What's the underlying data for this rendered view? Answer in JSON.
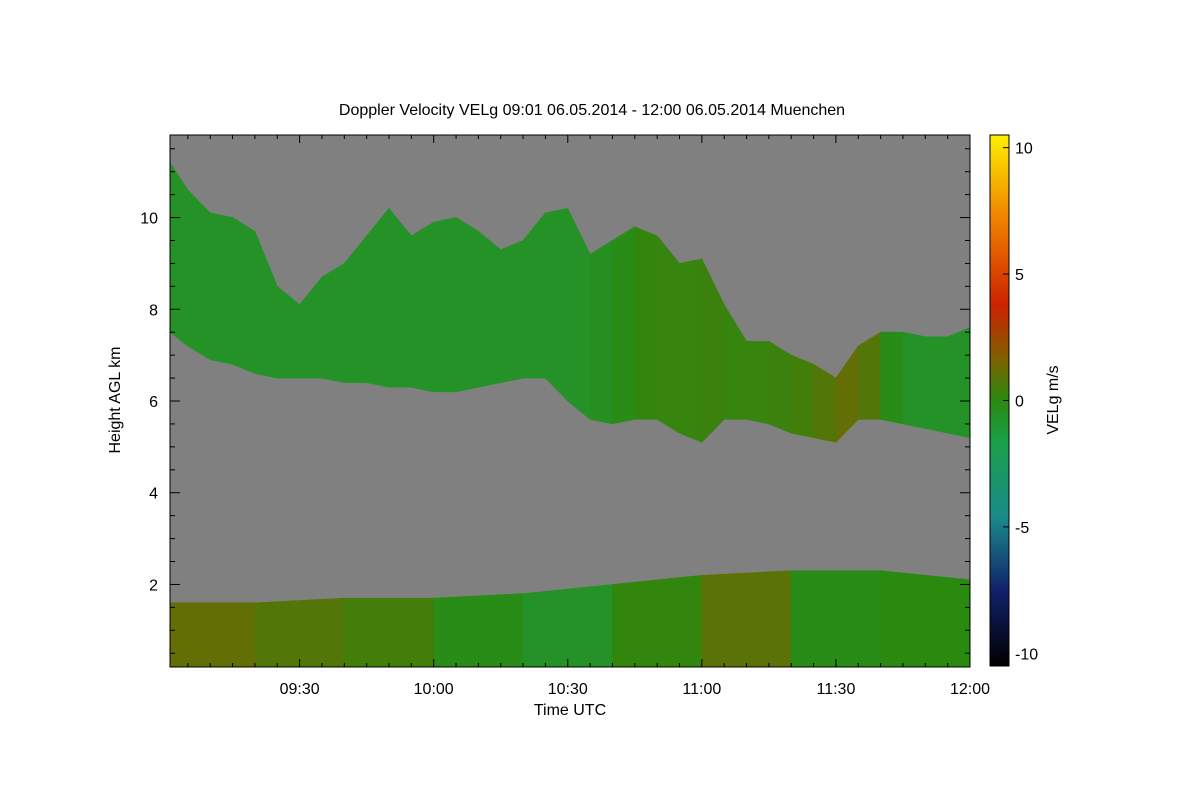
{
  "chart_data": {
    "type": "heatmap",
    "title": "Doppler Velocity VELg   09:01 06.05.2014 - 12:00 06.05.2014 Muenchen",
    "xlabel": "Time UTC",
    "ylabel": "Height AGL km",
    "x_ticks": [
      "09:30",
      "10:00",
      "10:30",
      "11:00",
      "11:30",
      "12:00"
    ],
    "x_tick_minutes": [
      570,
      600,
      630,
      660,
      690,
      720
    ],
    "xlim_minutes": [
      541,
      720
    ],
    "y_ticks": [
      "2",
      "4",
      "6",
      "8",
      "10"
    ],
    "y_tick_values": [
      2,
      4,
      6,
      8,
      10
    ],
    "ylim": [
      0.2,
      11.8
    ],
    "grid": false,
    "colorbar": {
      "label": "VELg m/s",
      "ticks": [
        "10",
        "5",
        "0",
        "-5",
        "-10"
      ],
      "tick_values": [
        10,
        5,
        0,
        -5,
        -10
      ],
      "range": [
        -10.5,
        10.5
      ],
      "colors": [
        "#000000",
        "#10206a",
        "#1a8a8a",
        "#1aa04a",
        "#2a8a10",
        "#806000",
        "#cc2200",
        "#f08000",
        "#ffee00"
      ]
    },
    "background_color": "#808080",
    "cloud_layer": {
      "time_minutes": [
        541,
        545,
        550,
        555,
        560,
        565,
        570,
        575,
        580,
        585,
        590,
        595,
        600,
        605,
        610,
        615,
        620,
        625,
        630,
        635,
        640,
        645,
        650,
        655,
        660,
        665,
        670,
        675,
        680,
        685,
        690,
        695,
        700,
        705,
        710,
        715,
        720
      ],
      "base_km": [
        7.5,
        7.2,
        6.9,
        6.8,
        6.6,
        6.5,
        6.5,
        6.5,
        6.4,
        6.4,
        6.3,
        6.3,
        6.2,
        6.2,
        6.3,
        6.4,
        6.5,
        6.5,
        6.0,
        5.6,
        5.5,
        5.6,
        5.6,
        5.3,
        5.1,
        5.6,
        5.6,
        5.5,
        5.3,
        5.2,
        5.1,
        5.6,
        5.6,
        5.5,
        5.4,
        5.3,
        5.2
      ],
      "top_km": [
        11.2,
        10.6,
        10.1,
        10.0,
        9.7,
        8.5,
        8.1,
        8.7,
        9.0,
        9.6,
        10.2,
        9.6,
        9.9,
        10.0,
        9.7,
        9.3,
        9.5,
        10.1,
        10.2,
        9.2,
        9.5,
        9.8,
        9.6,
        9.0,
        9.1,
        8.1,
        7.3,
        7.3,
        7.0,
        6.8,
        6.5,
        7.2,
        7.5,
        7.5,
        7.4,
        7.4,
        7.6
      ],
      "velocity_mps": [
        -1,
        -1,
        -1,
        -1,
        -1,
        -1,
        -1,
        -1,
        -1,
        -1,
        -1,
        -1,
        -1,
        -1,
        -1,
        -1,
        -1,
        -1,
        -1,
        -1,
        -0.5,
        0,
        0.5,
        0.3,
        0.5,
        0.5,
        0.3,
        0.5,
        0.5,
        1,
        1.5,
        2,
        0.5,
        -1,
        -1,
        -1,
        -1
      ]
    },
    "boundary_layer": {
      "time_minutes": [
        541,
        560,
        580,
        600,
        620,
        640,
        660,
        680,
        700,
        720
      ],
      "top_km": [
        1.6,
        1.6,
        1.7,
        1.7,
        1.8,
        2.0,
        2.2,
        2.3,
        2.3,
        2.1
      ],
      "velocity_mps": [
        2,
        1.5,
        1,
        0.5,
        -1,
        -1,
        1.5,
        1.5,
        -2,
        2
      ]
    }
  }
}
